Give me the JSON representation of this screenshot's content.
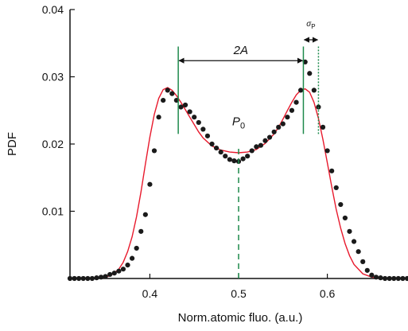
{
  "chart_data": {
    "type": "scatter",
    "xlabel": "Norm.atomic fluo. (a.u.)",
    "ylabel": "PDF",
    "xlim": [
      0.31,
      0.69
    ],
    "ylim": [
      0,
      0.04
    ],
    "xticks": [
      0.4,
      0.5,
      0.6
    ],
    "yticks": [
      0.01,
      0.02,
      0.03,
      0.04
    ],
    "grid": false,
    "colors": {
      "points": "#1a1a1a",
      "fit": "#e8192c",
      "markers": "#1e8a4c",
      "arrows": "#111111"
    },
    "series": [
      {
        "style": "dots",
        "x": [
          0.31,
          0.315,
          0.32,
          0.325,
          0.33,
          0.335,
          0.34,
          0.345,
          0.35,
          0.355,
          0.36,
          0.365,
          0.37,
          0.375,
          0.38,
          0.385,
          0.39,
          0.395,
          0.4,
          0.405,
          0.41,
          0.415,
          0.42,
          0.425,
          0.43,
          0.435,
          0.44,
          0.445,
          0.45,
          0.455,
          0.46,
          0.465,
          0.47,
          0.475,
          0.48,
          0.485,
          0.49,
          0.495,
          0.5,
          0.505,
          0.51,
          0.515,
          0.52,
          0.525,
          0.53,
          0.535,
          0.54,
          0.545,
          0.55,
          0.555,
          0.56,
          0.565,
          0.57,
          0.575,
          0.58,
          0.585,
          0.59,
          0.595,
          0.6,
          0.605,
          0.61,
          0.615,
          0.62,
          0.625,
          0.63,
          0.635,
          0.64,
          0.645,
          0.65,
          0.655,
          0.66,
          0.665,
          0.67,
          0.675,
          0.68,
          0.685,
          0.69
        ],
        "y": [
          0.0,
          0.0,
          0.0,
          0.0,
          0.0,
          0.0,
          0.0001,
          0.0002,
          0.0003,
          0.0006,
          0.0008,
          0.0011,
          0.0014,
          0.002,
          0.003,
          0.0045,
          0.007,
          0.0095,
          0.014,
          0.019,
          0.024,
          0.0265,
          0.028,
          0.0275,
          0.0265,
          0.0255,
          0.0258,
          0.0248,
          0.024,
          0.0232,
          0.0222,
          0.0212,
          0.02,
          0.0194,
          0.0188,
          0.0182,
          0.0177,
          0.0175,
          0.0174,
          0.0178,
          0.0182,
          0.019,
          0.0196,
          0.0198,
          0.0205,
          0.021,
          0.0218,
          0.0225,
          0.023,
          0.024,
          0.025,
          0.0262,
          0.028,
          0.0322,
          0.0305,
          0.028,
          0.0255,
          0.0225,
          0.019,
          0.016,
          0.0135,
          0.011,
          0.009,
          0.007,
          0.0055,
          0.004,
          0.0025,
          0.0012,
          0.0005,
          0.0002,
          0.0001,
          0.0,
          0.0,
          0.0,
          0.0,
          0.0,
          0.0
        ]
      },
      {
        "style": "line",
        "model": "double-gaussian",
        "x": [
          0.31,
          0.32,
          0.33,
          0.34,
          0.35,
          0.355,
          0.36,
          0.365,
          0.37,
          0.375,
          0.38,
          0.385,
          0.39,
          0.395,
          0.4,
          0.405,
          0.41,
          0.415,
          0.42,
          0.425,
          0.43,
          0.435,
          0.44,
          0.445,
          0.45,
          0.455,
          0.46,
          0.47,
          0.48,
          0.49,
          0.5,
          0.51,
          0.52,
          0.53,
          0.54,
          0.545,
          0.55,
          0.555,
          0.56,
          0.565,
          0.57,
          0.575,
          0.58,
          0.585,
          0.59,
          0.595,
          0.6,
          0.605,
          0.61,
          0.615,
          0.62,
          0.625,
          0.63,
          0.64,
          0.65,
          0.66,
          0.67,
          0.68,
          0.69
        ],
        "y": [
          0.0,
          0.0,
          0.0,
          0.0001,
          0.0002,
          0.0004,
          0.0008,
          0.0014,
          0.0024,
          0.004,
          0.0062,
          0.0092,
          0.0129,
          0.017,
          0.021,
          0.0244,
          0.0268,
          0.0281,
          0.0284,
          0.028,
          0.0272,
          0.0262,
          0.0251,
          0.024,
          0.0229,
          0.0218,
          0.0209,
          0.0197,
          0.0191,
          0.0188,
          0.0187,
          0.0188,
          0.0192,
          0.0201,
          0.0215,
          0.0225,
          0.0237,
          0.025,
          0.0262,
          0.0273,
          0.028,
          0.0282,
          0.0277,
          0.0262,
          0.0238,
          0.0207,
          0.0172,
          0.0136,
          0.0103,
          0.0075,
          0.0052,
          0.0034,
          0.0021,
          0.0007,
          0.0002,
          0.0,
          0.0,
          0.0,
          0.0
        ]
      }
    ],
    "markers": {
      "left_peak_x": 0.432,
      "right_peak_x": 0.573,
      "center_x": 0.5,
      "sigma_x": 0.59,
      "peak_line_y": [
        0.0215,
        0.0345
      ],
      "center_line_y": [
        0,
        0.0195
      ],
      "sigma_line_y": [
        0.0215,
        0.0345
      ],
      "arrow_2A_y": 0.0324,
      "arrow_sigma_y": 0.0355
    },
    "annotations": {
      "two_a_label": "2A",
      "p0_label": "P",
      "p0_subscript": "0",
      "sigma_label": "σ",
      "sigma_subscript": "P"
    }
  }
}
